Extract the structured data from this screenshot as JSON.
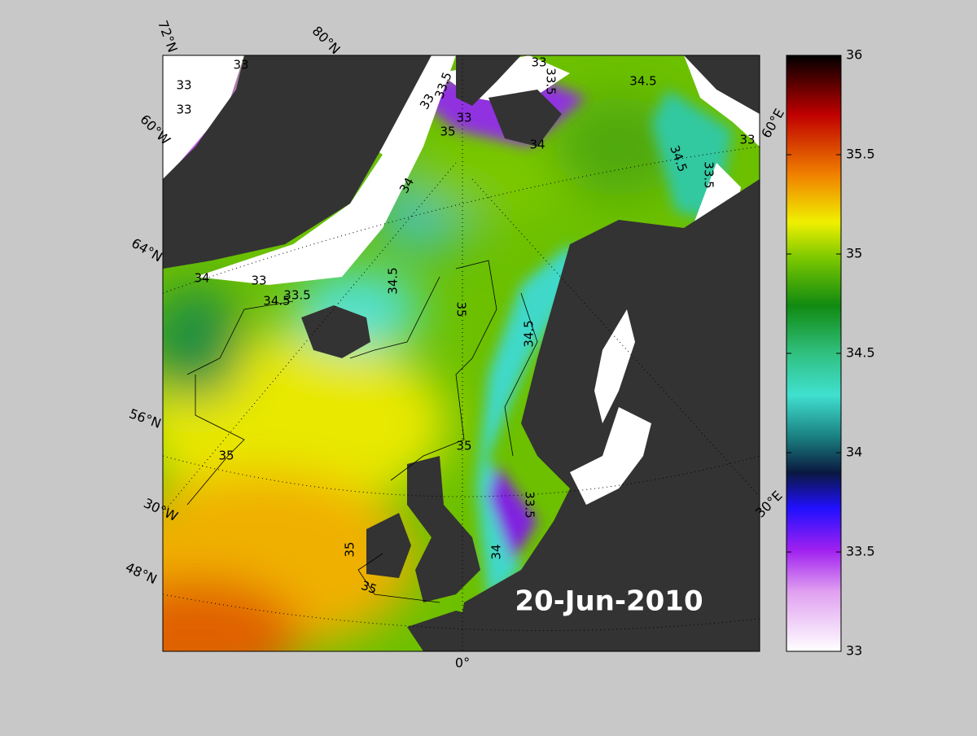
{
  "date": "20-Jun-2010",
  "colorbar": {
    "range": [
      33,
      36
    ],
    "ticks": [
      33,
      33.5,
      34,
      34.5,
      35,
      35.5,
      36
    ]
  },
  "graticule_labels": [
    "72°N",
    "80°N",
    "60°W",
    "64°N",
    "56°N",
    "30°W",
    "48°N",
    "0°",
    "30°E",
    "60°E"
  ],
  "contour_labels": [
    33,
    33,
    33,
    33,
    33.5,
    33,
    33.5,
    33,
    35,
    34,
    34.5,
    34.5,
    33.5,
    33,
    34,
    34.5,
    35,
    34.5,
    35,
    35,
    33.5,
    35,
    35,
    34,
    33,
    34.5,
    33.5,
    34
  ]
}
